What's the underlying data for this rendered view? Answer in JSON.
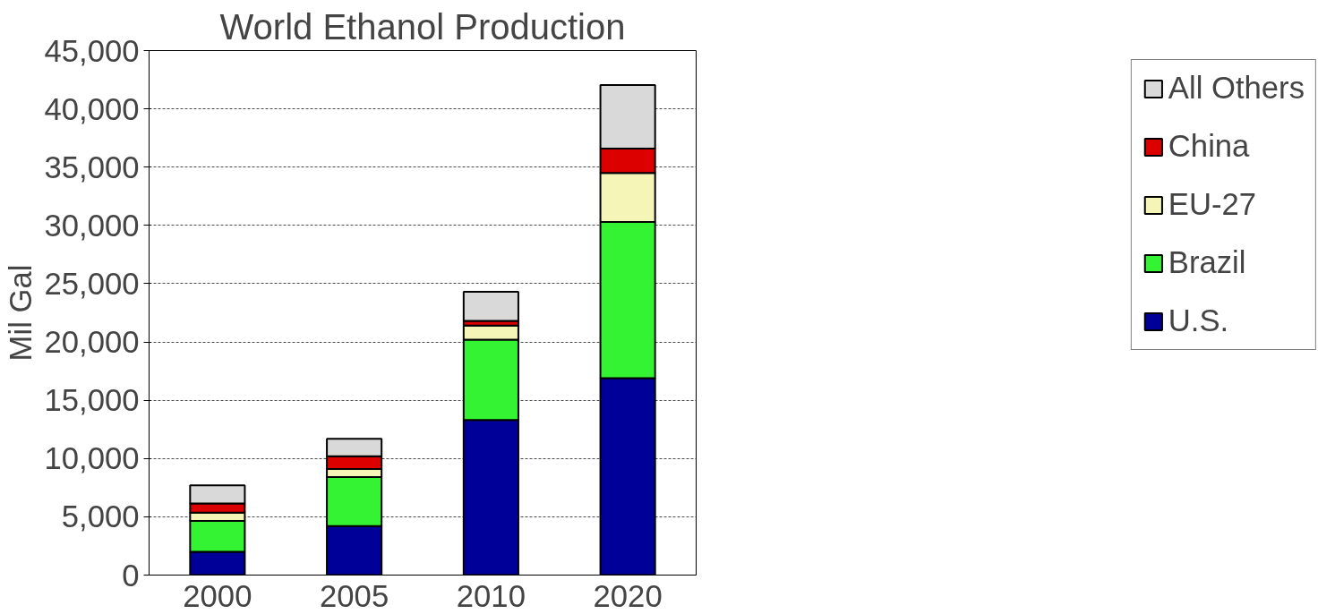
{
  "chart_data": {
    "type": "bar",
    "title": "World Ethanol Production",
    "ylabel": "Mil Gal",
    "stacked": true,
    "categories": [
      "2000",
      "2005",
      "2010",
      "2020"
    ],
    "series": [
      {
        "name": "U.S.",
        "color": "#000099",
        "values": [
          2000,
          4200,
          13300,
          16900
        ]
      },
      {
        "name": "Brazil",
        "color": "#33f333",
        "values": [
          2650,
          4200,
          6900,
          13400
        ]
      },
      {
        "name": "EU-27",
        "color": "#f5f5b8",
        "values": [
          700,
          700,
          1200,
          4200
        ]
      },
      {
        "name": "China",
        "color": "#dd0000",
        "values": [
          800,
          1100,
          400,
          2100
        ]
      },
      {
        "name": "All Others",
        "color": "#d9d9d9",
        "values": [
          1550,
          1500,
          2500,
          5450
        ]
      }
    ],
    "ylim": [
      0,
      45000
    ],
    "yticks": [
      0,
      {
        "value": 5000,
        "label": "5,000"
      },
      {
        "value": 10000,
        "label": "10,000"
      },
      {
        "value": 15000,
        "label": "15,000"
      },
      {
        "value": 20000,
        "label": "20,000"
      },
      {
        "value": 25000,
        "label": "25,000"
      },
      {
        "value": 30000,
        "label": "30,000"
      },
      {
        "value": 35000,
        "label": "35,000"
      },
      {
        "value": 40000,
        "label": "40,000"
      },
      {
        "value": 45000,
        "label": "45,000"
      }
    ],
    "grid": "y",
    "legend": "right"
  }
}
